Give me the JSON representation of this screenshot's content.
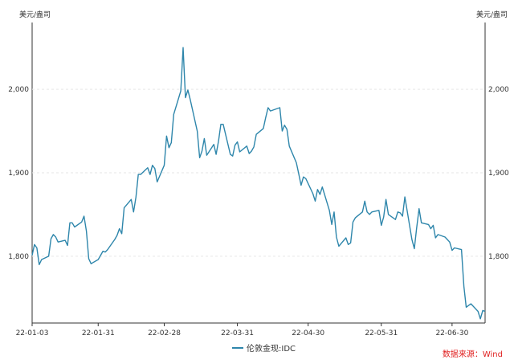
{
  "units": {
    "left": "美元/盎司",
    "right": "美元/盎司"
  },
  "source": "数据来源：Wind",
  "colors": {
    "series": "#2e86ab",
    "grid": "#e6e6e6",
    "axis": "#333333"
  },
  "chart_data": {
    "type": "line",
    "title": "",
    "xlabel": "",
    "ylabel": "美元/盎司",
    "x_ticks": [
      "22-01-03",
      "22-01-31",
      "22-02-28",
      "22-03-31",
      "22-04-30",
      "22-05-31",
      "22-06-30"
    ],
    "y_ticks": [
      "1,800",
      "1,900",
      "2,000"
    ],
    "y_tick_values": [
      1800,
      1900,
      2000
    ],
    "ylim": [
      1720,
      2080
    ],
    "grid": "horizontal dashed",
    "legend_position": "bottom-center",
    "series": [
      {
        "name": "伦敦金现:IDC",
        "points": [
          [
            "22-01-03",
            1801
          ],
          [
            "22-01-04",
            1814
          ],
          [
            "22-01-05",
            1810
          ],
          [
            "22-01-06",
            1790
          ],
          [
            "22-01-07",
            1796
          ],
          [
            "22-01-10",
            1800
          ],
          [
            "22-01-11",
            1821
          ],
          [
            "22-01-12",
            1826
          ],
          [
            "22-01-13",
            1823
          ],
          [
            "22-01-14",
            1817
          ],
          [
            "22-01-17",
            1819
          ],
          [
            "22-01-18",
            1813
          ],
          [
            "22-01-19",
            1840
          ],
          [
            "22-01-20",
            1840
          ],
          [
            "22-01-21",
            1835
          ],
          [
            "22-01-24",
            1841
          ],
          [
            "22-01-25",
            1848
          ],
          [
            "22-01-26",
            1830
          ],
          [
            "22-01-27",
            1797
          ],
          [
            "22-01-28",
            1791
          ],
          [
            "22-01-31",
            1796
          ],
          [
            "22-02-01",
            1801
          ],
          [
            "22-02-02",
            1806
          ],
          [
            "22-02-03",
            1805
          ],
          [
            "22-02-04",
            1808
          ],
          [
            "22-02-07",
            1820
          ],
          [
            "22-02-08",
            1825
          ],
          [
            "22-02-09",
            1833
          ],
          [
            "22-02-10",
            1827
          ],
          [
            "22-02-11",
            1858
          ],
          [
            "22-02-14",
            1868
          ],
          [
            "22-02-15",
            1853
          ],
          [
            "22-02-16",
            1871
          ],
          [
            "22-02-17",
            1898
          ],
          [
            "22-02-18",
            1898
          ],
          [
            "22-02-21",
            1906
          ],
          [
            "22-02-22",
            1898
          ],
          [
            "22-02-23",
            1909
          ],
          [
            "22-02-24",
            1905
          ],
          [
            "22-02-25",
            1889
          ],
          [
            "22-02-28",
            1909
          ],
          [
            "22-03-01",
            1944
          ],
          [
            "22-03-02",
            1930
          ],
          [
            "22-03-03",
            1936
          ],
          [
            "22-03-04",
            1970
          ],
          [
            "22-03-07",
            1998
          ],
          [
            "22-03-08",
            2050
          ],
          [
            "22-03-09",
            1990
          ],
          [
            "22-03-10",
            1999
          ],
          [
            "22-03-11",
            1988
          ],
          [
            "22-03-14",
            1950
          ],
          [
            "22-03-15",
            1918
          ],
          [
            "22-03-16",
            1926
          ],
          [
            "22-03-17",
            1941
          ],
          [
            "22-03-18",
            1921
          ],
          [
            "22-03-21",
            1934
          ],
          [
            "22-03-22",
            1922
          ],
          [
            "22-03-23",
            1938
          ],
          [
            "22-03-24",
            1958
          ],
          [
            "22-03-25",
            1958
          ],
          [
            "22-03-28",
            1922
          ],
          [
            "22-03-29",
            1920
          ],
          [
            "22-03-30",
            1933
          ],
          [
            "22-03-31",
            1937
          ],
          [
            "22-04-01",
            1925
          ],
          [
            "22-04-04",
            1932
          ],
          [
            "22-04-05",
            1923
          ],
          [
            "22-04-06",
            1926
          ],
          [
            "22-04-07",
            1931
          ],
          [
            "22-04-08",
            1946
          ],
          [
            "22-04-11",
            1953
          ],
          [
            "22-04-12",
            1966
          ],
          [
            "22-04-13",
            1978
          ],
          [
            "22-04-14",
            1974
          ],
          [
            "22-04-18",
            1978
          ],
          [
            "22-04-19",
            1950
          ],
          [
            "22-04-20",
            1957
          ],
          [
            "22-04-21",
            1952
          ],
          [
            "22-04-22",
            1932
          ],
          [
            "22-04-25",
            1912
          ],
          [
            "22-04-26",
            1899
          ],
          [
            "22-04-27",
            1885
          ],
          [
            "22-04-28",
            1895
          ],
          [
            "22-04-29",
            1893
          ],
          [
            "22-05-02",
            1875
          ],
          [
            "22-05-03",
            1866
          ],
          [
            "22-05-04",
            1880
          ],
          [
            "22-05-05",
            1874
          ],
          [
            "22-05-06",
            1883
          ],
          [
            "22-05-09",
            1855
          ],
          [
            "22-05-10",
            1838
          ],
          [
            "22-05-11",
            1853
          ],
          [
            "22-05-12",
            1823
          ],
          [
            "22-05-13",
            1812
          ],
          [
            "22-05-16",
            1822
          ],
          [
            "22-05-17",
            1814
          ],
          [
            "22-05-18",
            1816
          ],
          [
            "22-05-19",
            1841
          ],
          [
            "22-05-20",
            1846
          ],
          [
            "22-05-23",
            1853
          ],
          [
            "22-05-24",
            1866
          ],
          [
            "22-05-25",
            1853
          ],
          [
            "22-05-26",
            1850
          ],
          [
            "22-05-27",
            1853
          ],
          [
            "22-05-30",
            1855
          ],
          [
            "22-05-31",
            1837
          ],
          [
            "22-06-01",
            1847
          ],
          [
            "22-06-02",
            1868
          ],
          [
            "22-06-03",
            1850
          ],
          [
            "22-06-06",
            1844
          ],
          [
            "22-06-07",
            1853
          ],
          [
            "22-06-08",
            1852
          ],
          [
            "22-06-09",
            1848
          ],
          [
            "22-06-10",
            1871
          ],
          [
            "22-06-13",
            1820
          ],
          [
            "22-06-14",
            1809
          ],
          [
            "22-06-15",
            1834
          ],
          [
            "22-06-16",
            1857
          ],
          [
            "22-06-17",
            1840
          ],
          [
            "22-06-20",
            1838
          ],
          [
            "22-06-21",
            1833
          ],
          [
            "22-06-22",
            1837
          ],
          [
            "22-06-23",
            1822
          ],
          [
            "22-06-24",
            1826
          ],
          [
            "22-06-27",
            1823
          ],
          [
            "22-06-28",
            1820
          ],
          [
            "22-06-29",
            1817
          ],
          [
            "22-06-30",
            1807
          ],
          [
            "22-07-01",
            1810
          ],
          [
            "22-07-04",
            1808
          ],
          [
            "22-07-05",
            1764
          ],
          [
            "22-07-06",
            1739
          ],
          [
            "22-07-07",
            1741
          ],
          [
            "22-07-08",
            1743
          ],
          [
            "22-07-11",
            1734
          ],
          [
            "22-07-12",
            1725
          ],
          [
            "22-07-13",
            1735
          ],
          [
            "22-07-14",
            1734
          ]
        ]
      }
    ]
  }
}
